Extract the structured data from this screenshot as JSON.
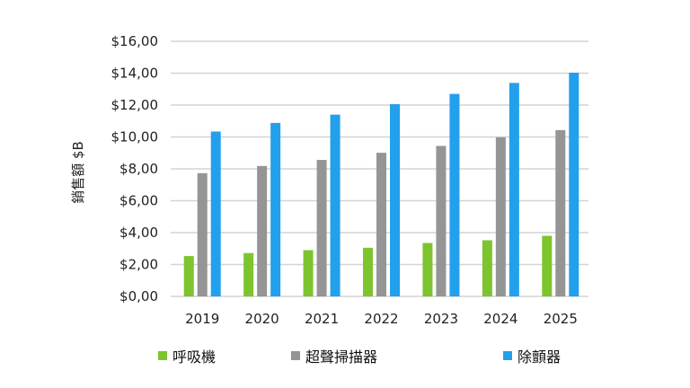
{
  "chart_data": {
    "type": "bar",
    "title": "",
    "xlabel": "",
    "ylabel": "銷售額 $B",
    "ylim": [
      0,
      16
    ],
    "yticks": [
      "$0,00",
      "$2,00",
      "$4,00",
      "$6,00",
      "$8,00",
      "$10,00",
      "$12,00",
      "$14,00",
      "$16,00"
    ],
    "grid": true,
    "legend_placement": "bottom",
    "categories": [
      "2019",
      "2020",
      "2021",
      "2022",
      "2023",
      "2024",
      "2025"
    ],
    "series": [
      {
        "name": "呼吸機",
        "color": "#7dc42f",
        "values": [
          2.53,
          2.72,
          2.9,
          3.05,
          3.35,
          3.52,
          3.8
        ]
      },
      {
        "name": "超聲掃描器",
        "color": "#959595",
        "values": [
          7.73,
          8.18,
          8.56,
          9.01,
          9.44,
          9.98,
          10.43
        ]
      },
      {
        "name": "除顫器",
        "color": "#22a0ec",
        "values": [
          10.34,
          10.88,
          11.4,
          12.06,
          12.7,
          13.39,
          14.03
        ]
      }
    ]
  }
}
